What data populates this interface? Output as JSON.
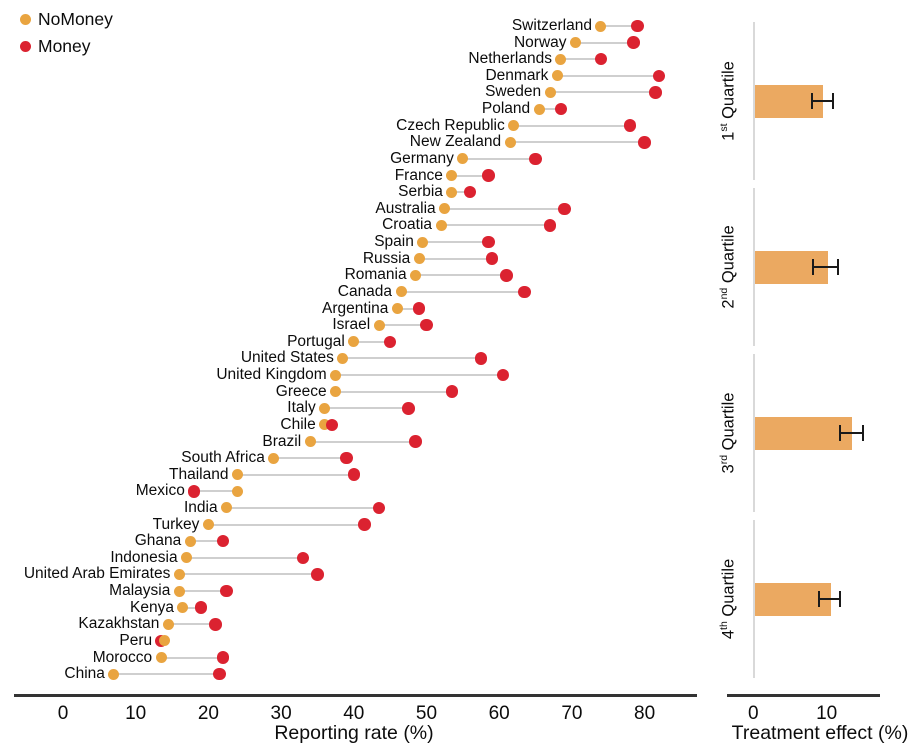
{
  "colors": {
    "nomoney_dot": "#E9A440",
    "money_dot": "#DB2230",
    "bar_fill": "#EBA961",
    "connector": "#CFCFCF",
    "axis": "#333333",
    "baseline": "#D9D9D9",
    "error_bar": "#1A1A1A",
    "text": "#0C0C0C"
  },
  "legend": {
    "items": [
      {
        "label": "NoMoney",
        "color": "#E9A440"
      },
      {
        "label": "Money",
        "color": "#DB2230"
      }
    ]
  },
  "main_axis": {
    "title": "Reporting rate (%)",
    "ticks": [
      0,
      10,
      20,
      30,
      40,
      50,
      60,
      70,
      80
    ]
  },
  "treatment_axis": {
    "title": "Treatment effect (%)",
    "ticks": [
      0,
      10
    ]
  },
  "chart_data": [
    {
      "type": "scatter",
      "subtype": "dumbbell",
      "title": "",
      "xlabel": "Reporting rate (%)",
      "ylabel": "",
      "xlim": [
        0,
        87
      ],
      "xticks": [
        0,
        10,
        20,
        30,
        40,
        50,
        60,
        70,
        80
      ],
      "grid": false,
      "legend_position": "top-left",
      "series_labels": [
        "NoMoney",
        "Money"
      ],
      "categories": [
        "Switzerland",
        "Norway",
        "Netherlands",
        "Denmark",
        "Sweden",
        "Poland",
        "Czech Republic",
        "New Zealand",
        "Germany",
        "France",
        "Serbia",
        "Australia",
        "Croatia",
        "Spain",
        "Russia",
        "Romania",
        "Canada",
        "Argentina",
        "Israel",
        "Portugal",
        "United States",
        "United Kingdom",
        "Greece",
        "Italy",
        "Chile",
        "Brazil",
        "South Africa",
        "Thailand",
        "Mexico",
        "India",
        "Turkey",
        "Ghana",
        "Indonesia",
        "United Arab Emirates",
        "Malaysia",
        "Kenya",
        "Kazakhstan",
        "Peru",
        "Morocco",
        "China"
      ],
      "series": [
        {
          "name": "NoMoney",
          "values": [
            74,
            70.5,
            68.5,
            68,
            67,
            65.5,
            62,
            61.5,
            55,
            53.5,
            53.5,
            52.5,
            52,
            49.5,
            49,
            48.5,
            46.5,
            46,
            43.5,
            40,
            38.5,
            37.5,
            37.5,
            36,
            36,
            34,
            29,
            24,
            24,
            22.5,
            20,
            17.5,
            17,
            16,
            16,
            16.5,
            14.5,
            14,
            13.5,
            7
          ]
        },
        {
          "name": "Money",
          "values": [
            79,
            78.5,
            74,
            82,
            81.5,
            68.5,
            78,
            80,
            65,
            58.5,
            56,
            69,
            67,
            58.5,
            59,
            61,
            63.5,
            49,
            50,
            45,
            57.5,
            60.5,
            53.5,
            47.5,
            37,
            48.5,
            39,
            40,
            18,
            43.5,
            41.5,
            22,
            33,
            35,
            22.5,
            19,
            21,
            13.5,
            22,
            21.5
          ]
        }
      ]
    },
    {
      "type": "bar",
      "orientation": "horizontal",
      "title": "",
      "xlabel": "Treatment effect (%)",
      "ylabel": "",
      "xlim": [
        0,
        17
      ],
      "xticks": [
        0,
        10
      ],
      "grid": false,
      "categories": [
        "1st Quartile",
        "2nd Quartile",
        "3rd Quartile",
        "4th Quartile"
      ],
      "category_parts": [
        {
          "num": "1",
          "suffix": "st",
          "word": "Quartile"
        },
        {
          "num": "2",
          "suffix": "nd",
          "word": "Quartile"
        },
        {
          "num": "3",
          "suffix": "rd",
          "word": "Quartile"
        },
        {
          "num": "4",
          "suffix": "th",
          "word": "Quartile"
        }
      ],
      "values": [
        9.4,
        10.0,
        13.3,
        10.4
      ],
      "error_low": [
        8.0,
        8.2,
        11.8,
        9.0
      ],
      "error_high": [
        10.9,
        11.6,
        14.9,
        11.8
      ]
    }
  ]
}
